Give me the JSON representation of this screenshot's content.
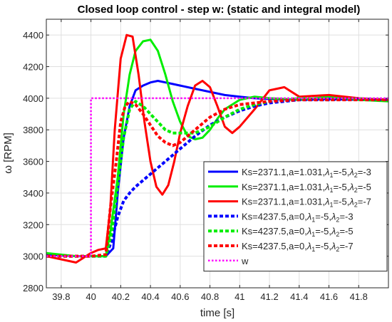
{
  "chart_data": {
    "type": "line",
    "title": "Closed loop control - step w: (static and integral model)",
    "xlabel": "time [s]",
    "ylabel": "ω [RPM]",
    "xlim": [
      39.7,
      42.0
    ],
    "ylim": [
      2800,
      4500
    ],
    "xticks": [
      39.8,
      40,
      40.2,
      40.4,
      40.6,
      40.8,
      41,
      41.2,
      41.4,
      41.6,
      41.8
    ],
    "xtick_labels": [
      "39.8",
      "40",
      "40.2",
      "40.4",
      "40.6",
      "40.8",
      "41",
      "41.2",
      "41.4",
      "41.6",
      "41.8"
    ],
    "yticks": [
      2800,
      3000,
      3200,
      3400,
      3600,
      3800,
      4000,
      4200,
      4400
    ],
    "ytick_labels": [
      "2800",
      "3000",
      "3200",
      "3400",
      "3600",
      "3800",
      "4000",
      "4200",
      "4400"
    ],
    "grid": true,
    "legend_position": "bottom-right",
    "series": [
      {
        "label_pre": "Ks=2371.1,a=1.031,",
        "lambda1": "-5",
        "lambda2": "-3",
        "color": "#0000ff",
        "style": "solid",
        "x": [
          39.7,
          39.9,
          40.0,
          40.1,
          40.15,
          40.18,
          40.22,
          40.26,
          40.3,
          40.35,
          40.4,
          40.45,
          40.5,
          40.55,
          40.6,
          40.7,
          40.8,
          40.9,
          41.0,
          41.1,
          41.2,
          41.4,
          41.6,
          41.8,
          42.0
        ],
        "y": [
          3010,
          3000,
          3000,
          3000,
          3050,
          3400,
          3750,
          3950,
          4050,
          4080,
          4100,
          4110,
          4100,
          4090,
          4080,
          4060,
          4040,
          4020,
          4010,
          4000,
          3995,
          3990,
          3995,
          3990,
          3985
        ]
      },
      {
        "label_pre": "Ks=2371.1,a=1.031,",
        "lambda1": "-5",
        "lambda2": "-5",
        "color": "#00ee00",
        "style": "solid",
        "x": [
          39.7,
          39.9,
          40.0,
          40.1,
          40.13,
          40.18,
          40.22,
          40.26,
          40.3,
          40.35,
          40.4,
          40.45,
          40.5,
          40.55,
          40.6,
          40.65,
          40.7,
          40.75,
          40.8,
          40.85,
          40.9,
          41.0,
          41.1,
          41.2,
          41.4,
          41.6,
          41.8,
          42.0
        ],
        "y": [
          3020,
          3000,
          3000,
          3000,
          3150,
          3500,
          3900,
          4150,
          4300,
          4360,
          4370,
          4300,
          4150,
          3980,
          3850,
          3760,
          3740,
          3750,
          3800,
          3870,
          3930,
          3990,
          4010,
          4000,
          3990,
          4010,
          3990,
          3980
        ]
      },
      {
        "label_pre": "Ks=2371.1,a=1.031,",
        "lambda1": "-5",
        "lambda2": "-7",
        "color": "#ff0000",
        "style": "solid",
        "x": [
          39.7,
          39.9,
          40.0,
          40.05,
          40.1,
          40.13,
          40.16,
          40.2,
          40.24,
          40.28,
          40.32,
          40.36,
          40.4,
          40.44,
          40.48,
          40.52,
          40.56,
          40.6,
          40.65,
          40.7,
          40.75,
          40.8,
          40.85,
          40.9,
          40.95,
          41.0,
          41.1,
          41.2,
          41.3,
          41.4,
          41.6,
          41.8,
          42.0
        ],
        "y": [
          3000,
          2960,
          3020,
          3040,
          3050,
          3300,
          3800,
          4250,
          4400,
          4390,
          4150,
          3850,
          3600,
          3440,
          3390,
          3450,
          3600,
          3780,
          3950,
          4080,
          4110,
          4070,
          3950,
          3820,
          3780,
          3820,
          3930,
          4050,
          4070,
          4010,
          4020,
          4000,
          3990
        ]
      },
      {
        "label_pre": "Ks=4237.5,a=0,",
        "lambda1": "-5",
        "lambda2": "-3",
        "color": "#0000ff",
        "style": "dotted",
        "x": [
          39.7,
          39.9,
          40.0,
          40.1,
          40.14,
          40.18,
          40.22,
          40.26,
          40.3,
          40.35,
          40.4,
          40.5,
          40.6,
          40.7,
          40.8,
          40.9,
          41.0,
          41.1,
          41.2,
          41.4,
          41.6,
          41.8,
          42.0
        ],
        "y": [
          3000,
          3000,
          3000,
          3000,
          3100,
          3250,
          3350,
          3400,
          3440,
          3480,
          3520,
          3600,
          3680,
          3760,
          3830,
          3880,
          3920,
          3950,
          3970,
          3990,
          3990,
          3995,
          3990
        ]
      },
      {
        "label_pre": "Ks=4237.5,a=0,",
        "lambda1": "-5",
        "lambda2": "-5",
        "color": "#00ee00",
        "style": "dotted",
        "x": [
          39.7,
          39.9,
          40.0,
          40.1,
          40.14,
          40.18,
          40.22,
          40.26,
          40.3,
          40.35,
          40.4,
          40.45,
          40.5,
          40.55,
          40.6,
          40.7,
          40.8,
          40.9,
          41.0,
          41.1,
          41.2,
          41.4,
          41.6,
          41.8,
          42.0
        ],
        "y": [
          3000,
          3000,
          3000,
          3000,
          3150,
          3450,
          3750,
          3930,
          3980,
          3950,
          3900,
          3850,
          3800,
          3780,
          3780,
          3780,
          3820,
          3880,
          3930,
          3960,
          3980,
          4000,
          3990,
          3995,
          3990
        ]
      },
      {
        "label_pre": "Ks=4237.5,a=0,",
        "lambda1": "-5",
        "lambda2": "-7",
        "color": "#ff0000",
        "style": "dotted",
        "x": [
          39.7,
          39.9,
          40.0,
          40.1,
          40.13,
          40.17,
          40.2,
          40.23,
          40.26,
          40.3,
          40.35,
          40.4,
          40.45,
          40.5,
          40.55,
          40.6,
          40.7,
          40.8,
          40.9,
          41.0,
          41.1,
          41.2,
          41.4,
          41.6,
          41.8,
          42.0
        ],
        "y": [
          3000,
          3000,
          3000,
          3010,
          3300,
          3600,
          3850,
          3950,
          3980,
          3960,
          3900,
          3830,
          3760,
          3720,
          3700,
          3720,
          3800,
          3880,
          3930,
          3960,
          3970,
          3980,
          3990,
          3990,
          3990,
          3990
        ]
      },
      {
        "label_text": "w",
        "color": "#ff00ff",
        "style": "dotted-thin",
        "x": [
          39.7,
          40.0,
          40.0,
          42.0
        ],
        "y": [
          3000,
          3000,
          4000,
          4000
        ]
      }
    ]
  }
}
